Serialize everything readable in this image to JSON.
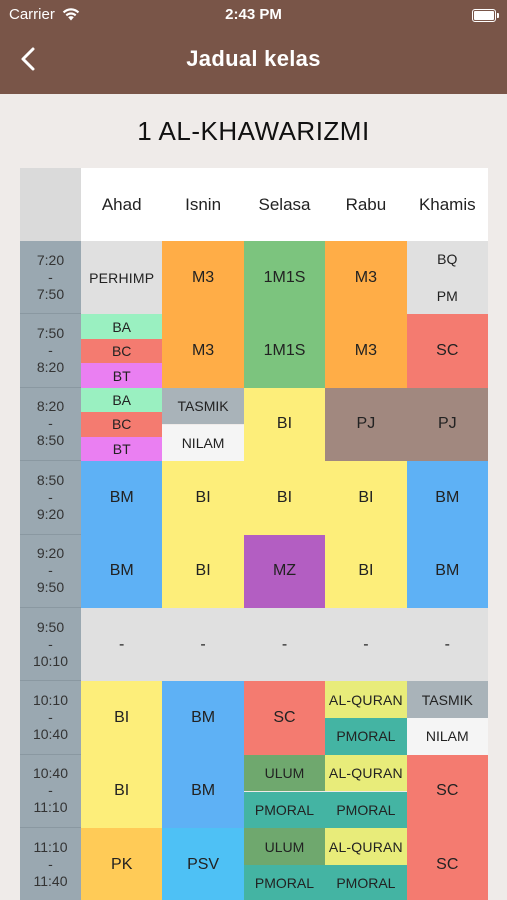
{
  "status_bar": {
    "carrier": "Carrier",
    "time": "2:43 PM"
  },
  "nav": {
    "title": "Jadual kelas"
  },
  "class_name": "1 AL-KHAWARIZMI",
  "days": [
    "Ahad",
    "Isnin",
    "Selasa",
    "Rabu",
    "Khamis"
  ],
  "times": [
    [
      "7:20",
      "-",
      "7:50"
    ],
    [
      "7:50",
      "-",
      "8:20"
    ],
    [
      "8:20",
      "-",
      "8:50"
    ],
    [
      "8:50",
      "-",
      "9:20"
    ],
    [
      "9:20",
      "-",
      "9:50"
    ],
    [
      "9:50",
      "-",
      "10:10"
    ],
    [
      "10:10",
      "-",
      "10:40"
    ],
    [
      "10:40",
      "-",
      "11:10"
    ],
    [
      "11:10",
      "-",
      "11:40"
    ]
  ],
  "colors": {
    "grey": "#e0e0e0",
    "orange": "#ffad47",
    "green": "#7cc47e",
    "mint": "#9af0c1",
    "salmon": "#f47b70",
    "pink": "#ea7ff2",
    "slate": "#a9b3b9",
    "white": "#f5f5f5",
    "yellow": "#fdee7a",
    "brown": "#a1887f",
    "blue": "#5eb1f5",
    "purple": "#b35ec2",
    "teal": "#44b4a3",
    "dkgreen": "#6fa86e",
    "lime": "#e8ec7a",
    "amber": "#ffcb57",
    "sky": "#4ec1f5"
  },
  "cells": [
    {
      "day": 0,
      "slot": 0,
      "span": 1,
      "part": 0,
      "parts": 1,
      "label": "PERHIMP",
      "color": "grey"
    },
    {
      "day": 1,
      "slot": 0,
      "span": 1,
      "part": 0,
      "parts": 1,
      "label": "M3",
      "color": "orange"
    },
    {
      "day": 2,
      "slot": 0,
      "span": 1,
      "part": 0,
      "parts": 1,
      "label": "1M1S",
      "color": "green"
    },
    {
      "day": 3,
      "slot": 0,
      "span": 1,
      "part": 0,
      "parts": 1,
      "label": "M3",
      "color": "orange"
    },
    {
      "day": 4,
      "slot": 0,
      "span": 1,
      "part": 0,
      "parts": 2,
      "label": "BQ",
      "color": "grey"
    },
    {
      "day": 4,
      "slot": 0,
      "span": 1,
      "part": 1,
      "parts": 2,
      "label": "PM",
      "color": "grey"
    },
    {
      "day": 0,
      "slot": 1,
      "span": 1,
      "part": 0,
      "parts": 3,
      "label": "BA",
      "color": "mint"
    },
    {
      "day": 0,
      "slot": 1,
      "span": 1,
      "part": 1,
      "parts": 3,
      "label": "BC",
      "color": "salmon"
    },
    {
      "day": 0,
      "slot": 1,
      "span": 1,
      "part": 2,
      "parts": 3,
      "label": "BT",
      "color": "pink"
    },
    {
      "day": 1,
      "slot": 1,
      "span": 1,
      "part": 0,
      "parts": 1,
      "label": "M3",
      "color": "orange"
    },
    {
      "day": 2,
      "slot": 1,
      "span": 1,
      "part": 0,
      "parts": 1,
      "label": "1M1S",
      "color": "green"
    },
    {
      "day": 3,
      "slot": 1,
      "span": 1,
      "part": 0,
      "parts": 1,
      "label": "M3",
      "color": "orange"
    },
    {
      "day": 4,
      "slot": 1,
      "span": 1,
      "part": 0,
      "parts": 1,
      "label": "SC",
      "color": "salmon"
    },
    {
      "day": 0,
      "slot": 2,
      "span": 1,
      "part": 0,
      "parts": 3,
      "label": "BA",
      "color": "mint"
    },
    {
      "day": 0,
      "slot": 2,
      "span": 1,
      "part": 1,
      "parts": 3,
      "label": "BC",
      "color": "salmon"
    },
    {
      "day": 0,
      "slot": 2,
      "span": 1,
      "part": 2,
      "parts": 3,
      "label": "BT",
      "color": "pink"
    },
    {
      "day": 1,
      "slot": 2,
      "span": 1,
      "part": 0,
      "parts": 2,
      "label": "TASMIK",
      "color": "slate"
    },
    {
      "day": 1,
      "slot": 2,
      "span": 1,
      "part": 1,
      "parts": 2,
      "label": "NILAM",
      "color": "white"
    },
    {
      "day": 2,
      "slot": 2,
      "span": 1,
      "part": 0,
      "parts": 1,
      "label": "BI",
      "color": "yellow"
    },
    {
      "day": 3,
      "slot": 2,
      "span": 1,
      "part": 0,
      "parts": 1,
      "label": "PJ",
      "color": "brown"
    },
    {
      "day": 4,
      "slot": 2,
      "span": 1,
      "part": 0,
      "parts": 1,
      "label": "PJ",
      "color": "brown"
    },
    {
      "day": 0,
      "slot": 3,
      "span": 1,
      "part": 0,
      "parts": 1,
      "label": "BM",
      "color": "blue"
    },
    {
      "day": 1,
      "slot": 3,
      "span": 1,
      "part": 0,
      "parts": 1,
      "label": "BI",
      "color": "yellow"
    },
    {
      "day": 2,
      "slot": 3,
      "span": 1,
      "part": 0,
      "parts": 1,
      "label": "BI",
      "color": "yellow"
    },
    {
      "day": 3,
      "slot": 3,
      "span": 1,
      "part": 0,
      "parts": 1,
      "label": "BI",
      "color": "yellow"
    },
    {
      "day": 4,
      "slot": 3,
      "span": 1,
      "part": 0,
      "parts": 1,
      "label": "BM",
      "color": "blue"
    },
    {
      "day": 0,
      "slot": 4,
      "span": 1,
      "part": 0,
      "parts": 1,
      "label": "BM",
      "color": "blue"
    },
    {
      "day": 1,
      "slot": 4,
      "span": 1,
      "part": 0,
      "parts": 1,
      "label": "BI",
      "color": "yellow"
    },
    {
      "day": 2,
      "slot": 4,
      "span": 1,
      "part": 0,
      "parts": 1,
      "label": "MZ",
      "color": "purple"
    },
    {
      "day": 3,
      "slot": 4,
      "span": 1,
      "part": 0,
      "parts": 1,
      "label": "BI",
      "color": "yellow"
    },
    {
      "day": 4,
      "slot": 4,
      "span": 1,
      "part": 0,
      "parts": 1,
      "label": "BM",
      "color": "blue"
    },
    {
      "day": 0,
      "slot": 5,
      "span": 1,
      "part": 0,
      "parts": 1,
      "label": "-",
      "color": "grey"
    },
    {
      "day": 1,
      "slot": 5,
      "span": 1,
      "part": 0,
      "parts": 1,
      "label": "-",
      "color": "grey"
    },
    {
      "day": 2,
      "slot": 5,
      "span": 1,
      "part": 0,
      "parts": 1,
      "label": "-",
      "color": "grey"
    },
    {
      "day": 3,
      "slot": 5,
      "span": 1,
      "part": 0,
      "parts": 1,
      "label": "-",
      "color": "grey"
    },
    {
      "day": 4,
      "slot": 5,
      "span": 1,
      "part": 0,
      "parts": 1,
      "label": "-",
      "color": "grey"
    },
    {
      "day": 0,
      "slot": 6,
      "span": 1,
      "part": 0,
      "parts": 1,
      "label": "BI",
      "color": "yellow"
    },
    {
      "day": 1,
      "slot": 6,
      "span": 1,
      "part": 0,
      "parts": 1,
      "label": "BM",
      "color": "blue"
    },
    {
      "day": 2,
      "slot": 6,
      "span": 1,
      "part": 0,
      "parts": 1,
      "label": "SC",
      "color": "salmon"
    },
    {
      "day": 3,
      "slot": 6,
      "span": 1,
      "part": 0,
      "parts": 2,
      "label": "AL-QURAN",
      "color": "lime"
    },
    {
      "day": 3,
      "slot": 6,
      "span": 1,
      "part": 1,
      "parts": 2,
      "label": "PMORAL",
      "color": "teal"
    },
    {
      "day": 4,
      "slot": 6,
      "span": 1,
      "part": 0,
      "parts": 2,
      "label": "TASMIK",
      "color": "slate"
    },
    {
      "day": 4,
      "slot": 6,
      "span": 1,
      "part": 1,
      "parts": 2,
      "label": "NILAM",
      "color": "white"
    },
    {
      "day": 0,
      "slot": 7,
      "span": 1,
      "part": 0,
      "parts": 1,
      "label": "BI",
      "color": "yellow"
    },
    {
      "day": 1,
      "slot": 7,
      "span": 1,
      "part": 0,
      "parts": 1,
      "label": "BM",
      "color": "blue"
    },
    {
      "day": 2,
      "slot": 7,
      "span": 1,
      "part": 0,
      "parts": 2,
      "label": "ULUM",
      "color": "dkgreen"
    },
    {
      "day": 2,
      "slot": 7,
      "span": 1,
      "part": 1,
      "parts": 2,
      "label": "PMORAL",
      "color": "teal"
    },
    {
      "day": 3,
      "slot": 7,
      "span": 1,
      "part": 0,
      "parts": 2,
      "label": "AL-QURAN",
      "color": "lime"
    },
    {
      "day": 3,
      "slot": 7,
      "span": 1,
      "part": 1,
      "parts": 2,
      "label": "PMORAL",
      "color": "teal"
    },
    {
      "day": 4,
      "slot": 7,
      "span": 1,
      "part": 0,
      "parts": 1,
      "label": "SC",
      "color": "salmon"
    },
    {
      "day": 0,
      "slot": 8,
      "span": 1,
      "part": 0,
      "parts": 1,
      "label": "PK",
      "color": "amber"
    },
    {
      "day": 1,
      "slot": 8,
      "span": 1,
      "part": 0,
      "parts": 1,
      "label": "PSV",
      "color": "sky"
    },
    {
      "day": 2,
      "slot": 8,
      "span": 1,
      "part": 0,
      "parts": 2,
      "label": "ULUM",
      "color": "dkgreen"
    },
    {
      "day": 2,
      "slot": 8,
      "span": 1,
      "part": 1,
      "parts": 2,
      "label": "PMORAL",
      "color": "teal"
    },
    {
      "day": 3,
      "slot": 8,
      "span": 1,
      "part": 0,
      "parts": 2,
      "label": "AL-QURAN",
      "color": "lime"
    },
    {
      "day": 3,
      "slot": 8,
      "span": 1,
      "part": 1,
      "parts": 2,
      "label": "PMORAL",
      "color": "teal"
    },
    {
      "day": 4,
      "slot": 8,
      "span": 1,
      "part": 0,
      "parts": 1,
      "label": "SC",
      "color": "salmon"
    }
  ]
}
